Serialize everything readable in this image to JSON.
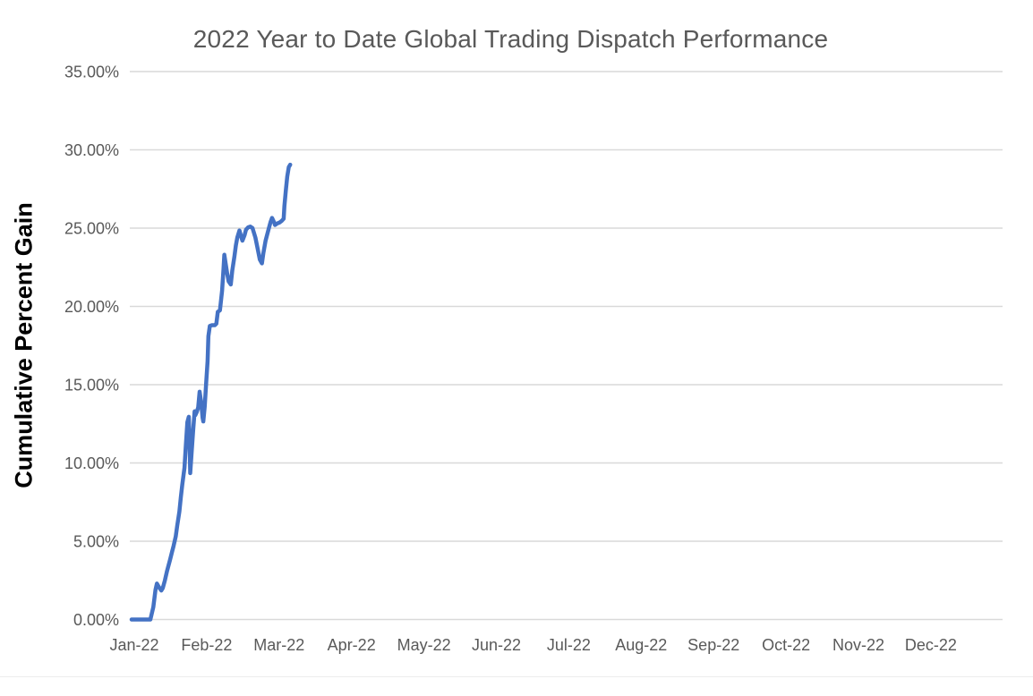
{
  "page": {
    "background": "#ffffff"
  },
  "chart_data": {
    "type": "line",
    "title": "2022 Year to Date Global Trading Dispatch Performance",
    "xlabel": "",
    "ylabel": "Cumulative Percent Gain",
    "legend": "none",
    "grid": "horizontal",
    "x_axis_unit": "month",
    "x_tick_labels": [
      "Jan-22",
      "Feb-22",
      "Mar-22",
      "Apr-22",
      "May-22",
      "Jun-22",
      "Jul-22",
      "Aug-22",
      "Sep-22",
      "Oct-22",
      "Nov-22",
      "Dec-22"
    ],
    "y_ticks": [
      0,
      5,
      10,
      15,
      20,
      25,
      30,
      35
    ],
    "y_tick_labels": [
      "0.00%",
      "5.00%",
      "10.00%",
      "15.00%",
      "20.00%",
      "25.00%",
      "30.00%",
      "35.00%"
    ],
    "ylim": [
      0,
      35
    ],
    "colors": {
      "line": "#4472C4",
      "title": "#595959",
      "tick_label": "#595959",
      "gridline": "#D9D9D9",
      "axis_title": "#000000"
    },
    "series": [
      {
        "name": "Cumulative Percent Gain",
        "color": "#4472C4",
        "note": "points are [months_after_Jan-22_tick, cumulative_percent]; data runs Jan-22 to ~mid Mar-22, ending near 29%",
        "points": [
          [
            0.0,
            0.0
          ],
          [
            0.26,
            0.0
          ],
          [
            0.3,
            0.8
          ],
          [
            0.33,
            1.9
          ],
          [
            0.35,
            2.3
          ],
          [
            0.38,
            2.05
          ],
          [
            0.41,
            1.85
          ],
          [
            0.43,
            2.0
          ],
          [
            0.46,
            2.5
          ],
          [
            0.49,
            3.1
          ],
          [
            0.53,
            3.8
          ],
          [
            0.56,
            4.35
          ],
          [
            0.58,
            4.7
          ],
          [
            0.61,
            5.3
          ],
          [
            0.63,
            6.0
          ],
          [
            0.66,
            6.9
          ],
          [
            0.68,
            7.8
          ],
          [
            0.7,
            8.6
          ],
          [
            0.73,
            9.7
          ],
          [
            0.75,
            11.2
          ],
          [
            0.77,
            12.6
          ],
          [
            0.79,
            12.95
          ],
          [
            0.8,
            11.5
          ],
          [
            0.81,
            9.35
          ],
          [
            0.83,
            10.7
          ],
          [
            0.85,
            12.1
          ],
          [
            0.87,
            13.3
          ],
          [
            0.88,
            13.05
          ],
          [
            0.9,
            13.25
          ],
          [
            0.92,
            13.55
          ],
          [
            0.94,
            14.55
          ],
          [
            0.96,
            13.9
          ],
          [
            0.98,
            12.9
          ],
          [
            0.99,
            12.65
          ],
          [
            1.01,
            13.6
          ],
          [
            1.03,
            15.1
          ],
          [
            1.05,
            16.5
          ],
          [
            1.06,
            18.1
          ],
          [
            1.08,
            18.75
          ],
          [
            1.11,
            18.8
          ],
          [
            1.15,
            18.8
          ],
          [
            1.17,
            18.9
          ],
          [
            1.19,
            19.65
          ],
          [
            1.22,
            19.75
          ],
          [
            1.25,
            21.0
          ],
          [
            1.27,
            22.4
          ],
          [
            1.28,
            23.3
          ],
          [
            1.3,
            22.7
          ],
          [
            1.32,
            22.1
          ],
          [
            1.34,
            21.6
          ],
          [
            1.37,
            21.4
          ],
          [
            1.39,
            22.3
          ],
          [
            1.42,
            23.2
          ],
          [
            1.44,
            23.9
          ],
          [
            1.46,
            24.4
          ],
          [
            1.49,
            24.85
          ],
          [
            1.51,
            24.5
          ],
          [
            1.53,
            24.2
          ],
          [
            1.56,
            24.55
          ],
          [
            1.58,
            24.9
          ],
          [
            1.61,
            25.05
          ],
          [
            1.64,
            25.1
          ],
          [
            1.67,
            25.0
          ],
          [
            1.71,
            24.4
          ],
          [
            1.74,
            23.7
          ],
          [
            1.77,
            23.0
          ],
          [
            1.8,
            22.75
          ],
          [
            1.82,
            23.4
          ],
          [
            1.85,
            24.2
          ],
          [
            1.89,
            24.9
          ],
          [
            1.92,
            25.4
          ],
          [
            1.94,
            25.65
          ],
          [
            1.97,
            25.35
          ],
          [
            1.98,
            25.2
          ],
          [
            2.01,
            25.3
          ],
          [
            2.04,
            25.35
          ],
          [
            2.07,
            25.45
          ],
          [
            2.1,
            25.6
          ],
          [
            2.11,
            26.4
          ],
          [
            2.13,
            27.4
          ],
          [
            2.15,
            28.3
          ],
          [
            2.17,
            28.9
          ],
          [
            2.19,
            29.05
          ]
        ]
      }
    ]
  }
}
